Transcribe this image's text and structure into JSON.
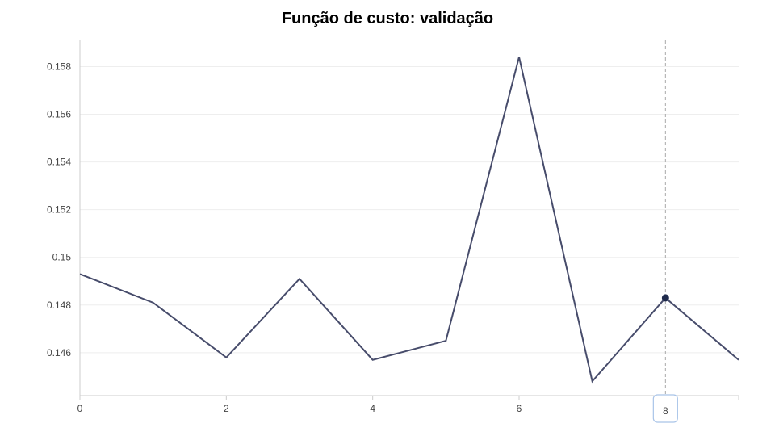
{
  "chart_data": {
    "type": "line",
    "title": "Função de custo: validação",
    "xlabel": "",
    "ylabel": "",
    "x": [
      0,
      1,
      2,
      3,
      4,
      5,
      6,
      7,
      8,
      9
    ],
    "series": [
      {
        "values": [
          0.1493,
          0.1481,
          0.1458,
          0.1491,
          0.1457,
          0.1465,
          0.1584,
          0.1448,
          0.1483,
          0.1457
        ]
      }
    ],
    "xlim": [
      0,
      9
    ],
    "ylim": [
      0.1442,
      0.1591
    ],
    "x_ticks": [
      0,
      2,
      4,
      6
    ],
    "x_tick_labels": [
      "0",
      "2",
      "4",
      "6"
    ],
    "y_ticks": [
      0.146,
      0.148,
      0.15,
      0.152,
      0.154,
      0.156,
      0.158
    ],
    "y_tick_labels": [
      "0.146",
      "0.148",
      "0.15",
      "0.152",
      "0.154",
      "0.156",
      "0.158"
    ],
    "grid": true,
    "hover": {
      "x": 8,
      "label": "8"
    },
    "colors": {
      "line": "#474c6b",
      "grid": "#eeeeee",
      "axis": "#cccccc",
      "crosshair": "#aaaaaa",
      "marker": "#1f2b4d"
    }
  }
}
